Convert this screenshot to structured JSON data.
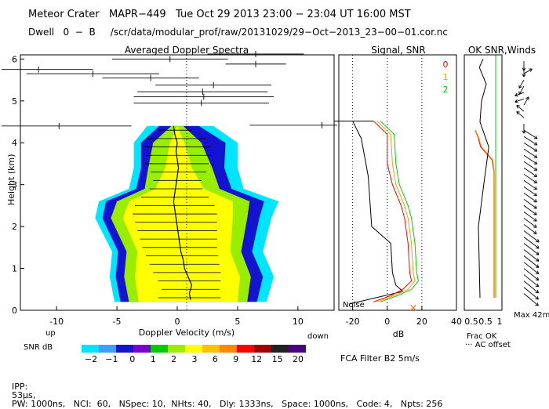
{
  "header": {
    "line1": "Meteor Crater   MAPR−449   Tue Oct 29 2013 23:00 − 23:04 UT 16:00 MST",
    "line2": "Dwell   0  −  B     /scr/data/modular_prof/raw/20131029/29−Oct−2013_23−00−01.cor.nc"
  },
  "footer": {
    "ipp_label": "IPP:",
    "ipp_value": "53μs,",
    "rest": "PW: 1000ns,   NCI:  60,   NSpec: 10,  NHts: 40,   Dly: 1333ns,   Space: 1000ns,   Code: 4,   Npts: 256"
  },
  "colors": {
    "snr_scale": [
      "#00e5ff",
      "#3aa0ff",
      "#1414d0",
      "#7a00d0",
      "#00cc00",
      "#99ee00",
      "#ffff00",
      "#ffc000",
      "#ff8800",
      "#ff0000",
      "#a00000",
      "#222222",
      "#4b0082"
    ],
    "ok0": "#ff0000",
    "ok1": "#ff9900",
    "ok2": "#00cc00"
  },
  "chart_data": [
    {
      "type": "heatmap",
      "title": "Averaged Doppler Spectra",
      "xlabel": "Doppler Velocity (m/s)",
      "ylabel": "Height (km)",
      "x_left_label": "up",
      "x_right_label": "down",
      "xlim": [
        -13,
        13
      ],
      "ylim": [
        0,
        6.1
      ],
      "xticks": [
        -10,
        -5,
        0,
        5,
        10
      ],
      "yticks": [
        0,
        1,
        2,
        3,
        4,
        5,
        6
      ],
      "colorbar": {
        "label": "SNR dB",
        "levels": [
          "−2",
          "−1",
          "0",
          "1",
          "2",
          "3",
          "6",
          "9",
          "12",
          "15",
          "20"
        ]
      },
      "echo_envelope": [
        {
          "h": 0.2,
          "w": [
            -5.2,
            7.4,
            -4.7,
            6.6,
            -4.0,
            5.8,
            -3.2,
            5.0
          ]
        },
        {
          "h": 0.8,
          "w": [
            -5.6,
            8.0,
            -5.1,
            7.1,
            -4.4,
            6.1,
            -3.5,
            5.2
          ]
        },
        {
          "h": 1.4,
          "w": [
            -5.4,
            7.1,
            -4.9,
            6.2,
            -4.2,
            5.3,
            -3.3,
            4.4
          ]
        },
        {
          "h": 2.2,
          "w": [
            -6.8,
            7.8,
            -6.2,
            6.8,
            -5.5,
            5.8,
            -4.5,
            4.6
          ]
        },
        {
          "h": 2.6,
          "w": [
            -6.5,
            8.4,
            -5.9,
            7.2,
            -5.0,
            6.0,
            -4.0,
            4.6
          ]
        },
        {
          "h": 2.9,
          "w": [
            -4.0,
            5.5,
            -3.4,
            4.5,
            -2.7,
            3.5,
            -1.8,
            2.2
          ]
        },
        {
          "h": 3.4,
          "w": [
            -3.6,
            5.0,
            -3.0,
            3.9,
            -2.4,
            2.9,
            -1.0,
            1.2
          ]
        },
        {
          "h": 4.0,
          "w": [
            -3.6,
            5.0,
            -3.0,
            4.0,
            -2.0,
            2.0,
            -0.6,
            0.6
          ]
        },
        {
          "h": 4.4,
          "w": [
            -2.5,
            3.0,
            -1.5,
            1.8,
            -0.5,
            0.5,
            0.0,
            0.0
          ]
        }
      ],
      "mean_velocity": [
        {
          "h": 0.25,
          "v": 1.1
        },
        {
          "h": 0.4,
          "v": 1.0
        },
        {
          "h": 0.6,
          "v": 1.2
        },
        {
          "h": 0.8,
          "v": 0.9
        },
        {
          "h": 1.0,
          "v": 0.6
        },
        {
          "h": 1.2,
          "v": 0.5
        },
        {
          "h": 1.4,
          "v": 0.3
        },
        {
          "h": 1.6,
          "v": 0.2
        },
        {
          "h": 1.8,
          "v": 0.1
        },
        {
          "h": 2.0,
          "v": 0.0
        },
        {
          "h": 2.2,
          "v": -0.1
        },
        {
          "h": 2.4,
          "v": -0.2
        },
        {
          "h": 2.6,
          "v": -0.3
        },
        {
          "h": 2.8,
          "v": -0.2
        },
        {
          "h": 3.0,
          "v": -0.1
        },
        {
          "h": 3.2,
          "v": 0.0
        },
        {
          "h": 3.4,
          "v": 0.1
        },
        {
          "h": 3.6,
          "v": 0.0
        },
        {
          "h": 3.8,
          "v": -0.1
        },
        {
          "h": 4.0,
          "v": 0.0
        },
        {
          "h": 4.2,
          "v": -0.2
        },
        {
          "h": 4.4,
          "v": -0.3
        }
      ],
      "spectral_width_bars": [
        {
          "h": 0.3,
          "c": 1.0,
          "hw": 2.6
        },
        {
          "h": 0.5,
          "c": 1.1,
          "hw": 2.4
        },
        {
          "h": 0.7,
          "c": 1.0,
          "hw": 2.6
        },
        {
          "h": 0.9,
          "c": 0.8,
          "hw": 2.8
        },
        {
          "h": 1.1,
          "c": 0.6,
          "hw": 2.9
        },
        {
          "h": 1.3,
          "c": 0.4,
          "hw": 3.0
        },
        {
          "h": 1.5,
          "c": 0.2,
          "hw": 3.1
        },
        {
          "h": 1.7,
          "c": 0.1,
          "hw": 3.2
        },
        {
          "h": 1.9,
          "c": 0.0,
          "hw": 3.3
        },
        {
          "h": 2.1,
          "c": -0.1,
          "hw": 3.4
        },
        {
          "h": 2.3,
          "c": -0.2,
          "hw": 3.5
        },
        {
          "h": 2.5,
          "c": -0.2,
          "hw": 3.3
        },
        {
          "h": 2.7,
          "c": -0.2,
          "hw": 2.8
        },
        {
          "h": 2.9,
          "c": -0.1,
          "hw": 2.2
        },
        {
          "h": 3.1,
          "c": 0.0,
          "hw": 2.0
        },
        {
          "h": 3.3,
          "c": 0.1,
          "hw": 2.3
        },
        {
          "h": 3.5,
          "c": 0.0,
          "hw": 2.6
        },
        {
          "h": 3.7,
          "c": 0.1,
          "hw": 2.7
        },
        {
          "h": 3.9,
          "c": 0.0,
          "hw": 2.8
        },
        {
          "h": 4.1,
          "c": -0.1,
          "hw": 2.5
        },
        {
          "h": 4.3,
          "c": -0.2,
          "hw": 1.4
        }
      ],
      "upper_noise_bars": [
        {
          "h": 4.4,
          "c": -9.8,
          "hw": 6.0
        },
        {
          "h": 4.42,
          "c": 12.0,
          "hw": 6.0
        },
        {
          "h": 4.95,
          "c": 2.0,
          "hw": 5.6
        },
        {
          "h": 5.1,
          "c": 2.2,
          "hw": 5.8
        },
        {
          "h": 5.22,
          "c": 2.1,
          "hw": 5.4
        },
        {
          "h": 5.38,
          "c": 3.0,
          "hw": 4.8
        },
        {
          "h": 5.55,
          "c": -2.2,
          "hw": 4.0
        },
        {
          "h": 5.65,
          "c": -7.0,
          "hw": 5.5
        },
        {
          "h": 5.75,
          "c": -11.5,
          "hw": 4.5
        },
        {
          "h": 5.88,
          "c": 6.5,
          "hw": 2.5
        },
        {
          "h": 6.0,
          "c": -0.6,
          "hw": 4.8
        },
        {
          "h": 6.12,
          "c": 6.5,
          "hw": 4.0
        }
      ]
    },
    {
      "type": "line",
      "title": "Signal, SNR",
      "xlabel": "dB",
      "ylabel": "Height (km)",
      "noise_label": "Noise",
      "xlim": [
        -28,
        40
      ],
      "ylim": [
        0,
        6.1
      ],
      "xticks": [
        -20,
        0,
        20,
        40
      ],
      "ok_legend": [
        "0",
        "1",
        "2"
      ],
      "series": [
        {
          "name": "signal",
          "points": [
            [
              -20,
              4.52
            ],
            [
              -15,
              4.1
            ],
            [
              -11,
              3.2
            ],
            [
              -10,
              2.6
            ],
            [
              -9,
              2.0
            ],
            [
              2,
              1.6
            ],
            [
              3,
              0.9
            ],
            [
              5,
              0.6
            ],
            [
              9,
              0.45
            ],
            [
              -22,
              0.15
            ]
          ]
        },
        {
          "name": "snr-0",
          "points": [
            [
              -8,
              4.52
            ],
            [
              0,
              4.2
            ],
            [
              0,
              3.5
            ],
            [
              3,
              3.0
            ],
            [
              8,
              2.5
            ],
            [
              10,
              2.2
            ],
            [
              12,
              1.6
            ],
            [
              13,
              0.9
            ],
            [
              14,
              0.7
            ],
            [
              9,
              0.5
            ],
            [
              2,
              0.35
            ],
            [
              -8,
              0.2
            ]
          ]
        },
        {
          "name": "snr-1",
          "points": [
            [
              -6,
              4.52
            ],
            [
              2,
              4.2
            ],
            [
              3,
              3.5
            ],
            [
              5,
              3.0
            ],
            [
              10,
              2.5
            ],
            [
              12,
              2.2
            ],
            [
              14,
              1.6
            ],
            [
              15,
              0.9
            ],
            [
              16,
              0.7
            ],
            [
              12,
              0.5
            ],
            [
              4,
              0.35
            ],
            [
              -6,
              0.2
            ]
          ]
        },
        {
          "name": "snr-2",
          "points": [
            [
              -4,
              4.52
            ],
            [
              4,
              4.2
            ],
            [
              5,
              3.5
            ],
            [
              7,
              3.0
            ],
            [
              12,
              2.5
            ],
            [
              14,
              2.2
            ],
            [
              16,
              1.6
            ],
            [
              17,
              0.9
            ],
            [
              18,
              0.7
            ],
            [
              14,
              0.5
            ],
            [
              6,
              0.35
            ],
            [
              -4,
              0.2
            ]
          ]
        }
      ]
    },
    {
      "type": "line",
      "title": "OK SNR,Winds",
      "xlabel": "Frac OK",
      "xnote": "AC offset",
      "xlim": [
        0,
        1.2
      ],
      "ylim": [
        0,
        6.1
      ],
      "xtick_labels": [
        "0.5",
        "0.5",
        "1"
      ],
      "series": [
        {
          "name": "frac-ok-0",
          "points": [
            [
              0.95,
              0.3
            ],
            [
              0.95,
              2.4
            ],
            [
              0.95,
              3.3
            ],
            [
              0.88,
              3.6
            ],
            [
              0.52,
              3.9
            ],
            [
              0.45,
              4.1
            ],
            [
              0.35,
              4.3
            ]
          ]
        },
        {
          "name": "frac-ok-1",
          "points": [
            [
              0.96,
              0.3
            ],
            [
              0.96,
              2.4
            ],
            [
              0.96,
              3.3
            ],
            [
              0.9,
              3.6
            ],
            [
              0.55,
              3.9
            ],
            [
              0.47,
              4.1
            ],
            [
              0.36,
              4.3
            ]
          ]
        },
        {
          "name": "frac-ok-2",
          "points": [
            [
              1.0,
              0.3
            ],
            [
              1.0,
              6.1
            ]
          ]
        },
        {
          "name": "ac-offset",
          "points": [
            [
              0.5,
              0.3
            ],
            [
              0.45,
              2.0
            ],
            [
              0.62,
              3.0
            ],
            [
              0.78,
              3.9
            ],
            [
              0.5,
              4.5
            ],
            [
              0.55,
              5.0
            ],
            [
              0.7,
              5.4
            ],
            [
              0.48,
              5.8
            ],
            [
              0.6,
              6.0
            ]
          ]
        }
      ],
      "winds_label": "Max 42m/s"
    }
  ]
}
